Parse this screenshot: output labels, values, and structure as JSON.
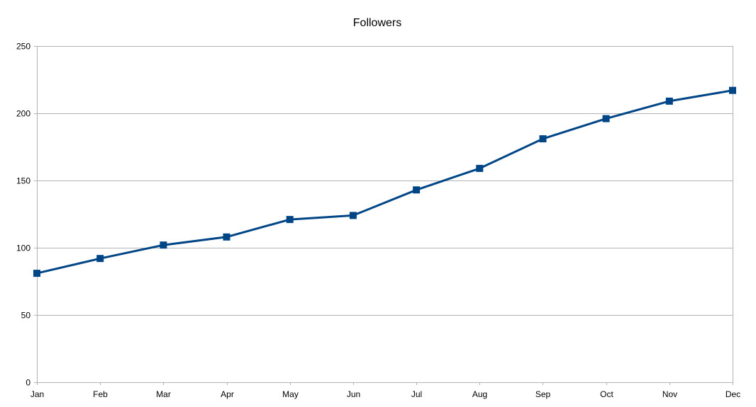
{
  "chart_data": {
    "type": "line",
    "title": "Followers",
    "xlabel": "",
    "ylabel": "",
    "categories": [
      "Jan",
      "Feb",
      "Mar",
      "Apr",
      "May",
      "Jun",
      "Jul",
      "Aug",
      "Sep",
      "Oct",
      "Nov",
      "Dec"
    ],
    "series": [
      {
        "values": [
          81,
          92,
          102,
          108,
          121,
          124,
          143,
          159,
          181,
          196,
          209,
          217
        ],
        "color": "#004586",
        "marker": "square"
      }
    ],
    "ylim": [
      0,
      250
    ],
    "yticks": [
      0,
      50,
      100,
      150,
      200,
      250
    ],
    "grid": true,
    "legend": "none"
  }
}
